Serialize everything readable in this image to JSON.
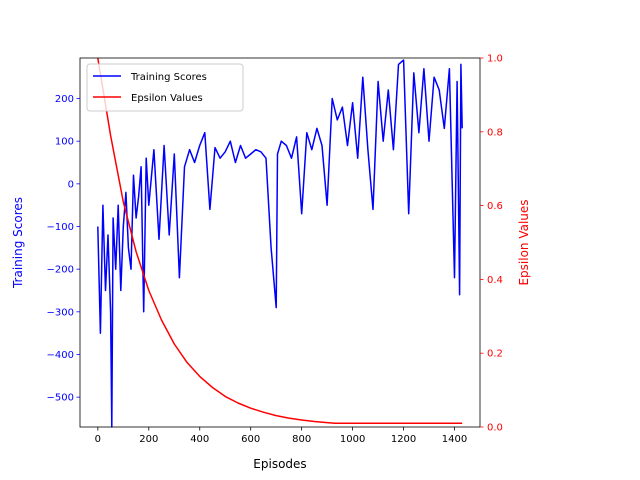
{
  "chart_data": {
    "type": "line",
    "xlabel": "Episodes",
    "ylabel_left": "Training Scores",
    "ylabel_right": "Epsilon Values",
    "xlim": [
      -70,
      1500
    ],
    "ylim_left": [
      -570,
      295
    ],
    "ylim_right": [
      0.0,
      1.0
    ],
    "x_ticks": [
      0,
      200,
      400,
      600,
      800,
      1000,
      1200,
      1400
    ],
    "y_ticks_left": [
      -500,
      -400,
      -300,
      -200,
      -100,
      0,
      100,
      200
    ],
    "y_ticks_right": [
      0.0,
      0.2,
      0.4,
      0.6,
      0.8,
      1.0
    ],
    "grid": false,
    "legend_position": "top-left",
    "colors": {
      "scores": "#0000ff",
      "epsilon": "#ff0000",
      "axes": "#000000"
    },
    "series": [
      {
        "name": "Training Scores",
        "axis": "left",
        "color": "#0000ff",
        "x": [
          0,
          10,
          20,
          30,
          40,
          50,
          55,
          60,
          70,
          80,
          90,
          100,
          110,
          120,
          130,
          140,
          150,
          160,
          170,
          180,
          190,
          200,
          220,
          240,
          260,
          280,
          300,
          320,
          340,
          360,
          380,
          400,
          420,
          440,
          460,
          480,
          500,
          520,
          540,
          560,
          580,
          600,
          620,
          640,
          660,
          680,
          700,
          705,
          720,
          740,
          760,
          780,
          800,
          820,
          840,
          860,
          880,
          900,
          920,
          940,
          960,
          980,
          1000,
          1020,
          1040,
          1060,
          1080,
          1100,
          1120,
          1140,
          1160,
          1180,
          1200,
          1220,
          1240,
          1260,
          1280,
          1300,
          1320,
          1340,
          1360,
          1380,
          1400,
          1410,
          1420,
          1425,
          1430
        ],
        "y": [
          -100,
          -350,
          -50,
          -250,
          -120,
          -300,
          -570,
          -80,
          -200,
          -50,
          -250,
          -100,
          -20,
          -150,
          -200,
          20,
          -80,
          -30,
          40,
          -300,
          60,
          -50,
          80,
          -130,
          90,
          -120,
          70,
          -220,
          40,
          80,
          50,
          90,
          120,
          -60,
          85,
          60,
          75,
          100,
          50,
          90,
          60,
          70,
          80,
          75,
          60,
          -150,
          -290,
          70,
          100,
          90,
          60,
          110,
          -70,
          120,
          80,
          130,
          90,
          -50,
          200,
          150,
          180,
          90,
          190,
          60,
          250,
          80,
          -60,
          240,
          100,
          220,
          80,
          280,
          290,
          -70,
          260,
          120,
          270,
          100,
          250,
          220,
          130,
          270,
          -220,
          240,
          -260,
          280,
          130
        ]
      },
      {
        "name": "Epsilon Values",
        "axis": "right",
        "color": "#ff0000",
        "x": [
          0,
          50,
          100,
          150,
          200,
          250,
          300,
          350,
          400,
          450,
          500,
          550,
          600,
          650,
          700,
          750,
          800,
          850,
          900,
          930,
          1000,
          1100,
          1200,
          1300,
          1400,
          1430
        ],
        "y": [
          1.0,
          0.79,
          0.61,
          0.475,
          0.37,
          0.29,
          0.225,
          0.175,
          0.137,
          0.107,
          0.083,
          0.065,
          0.051,
          0.04,
          0.031,
          0.024,
          0.019,
          0.015,
          0.012,
          0.01,
          0.01,
          0.01,
          0.01,
          0.01,
          0.01,
          0.01
        ]
      }
    ]
  }
}
